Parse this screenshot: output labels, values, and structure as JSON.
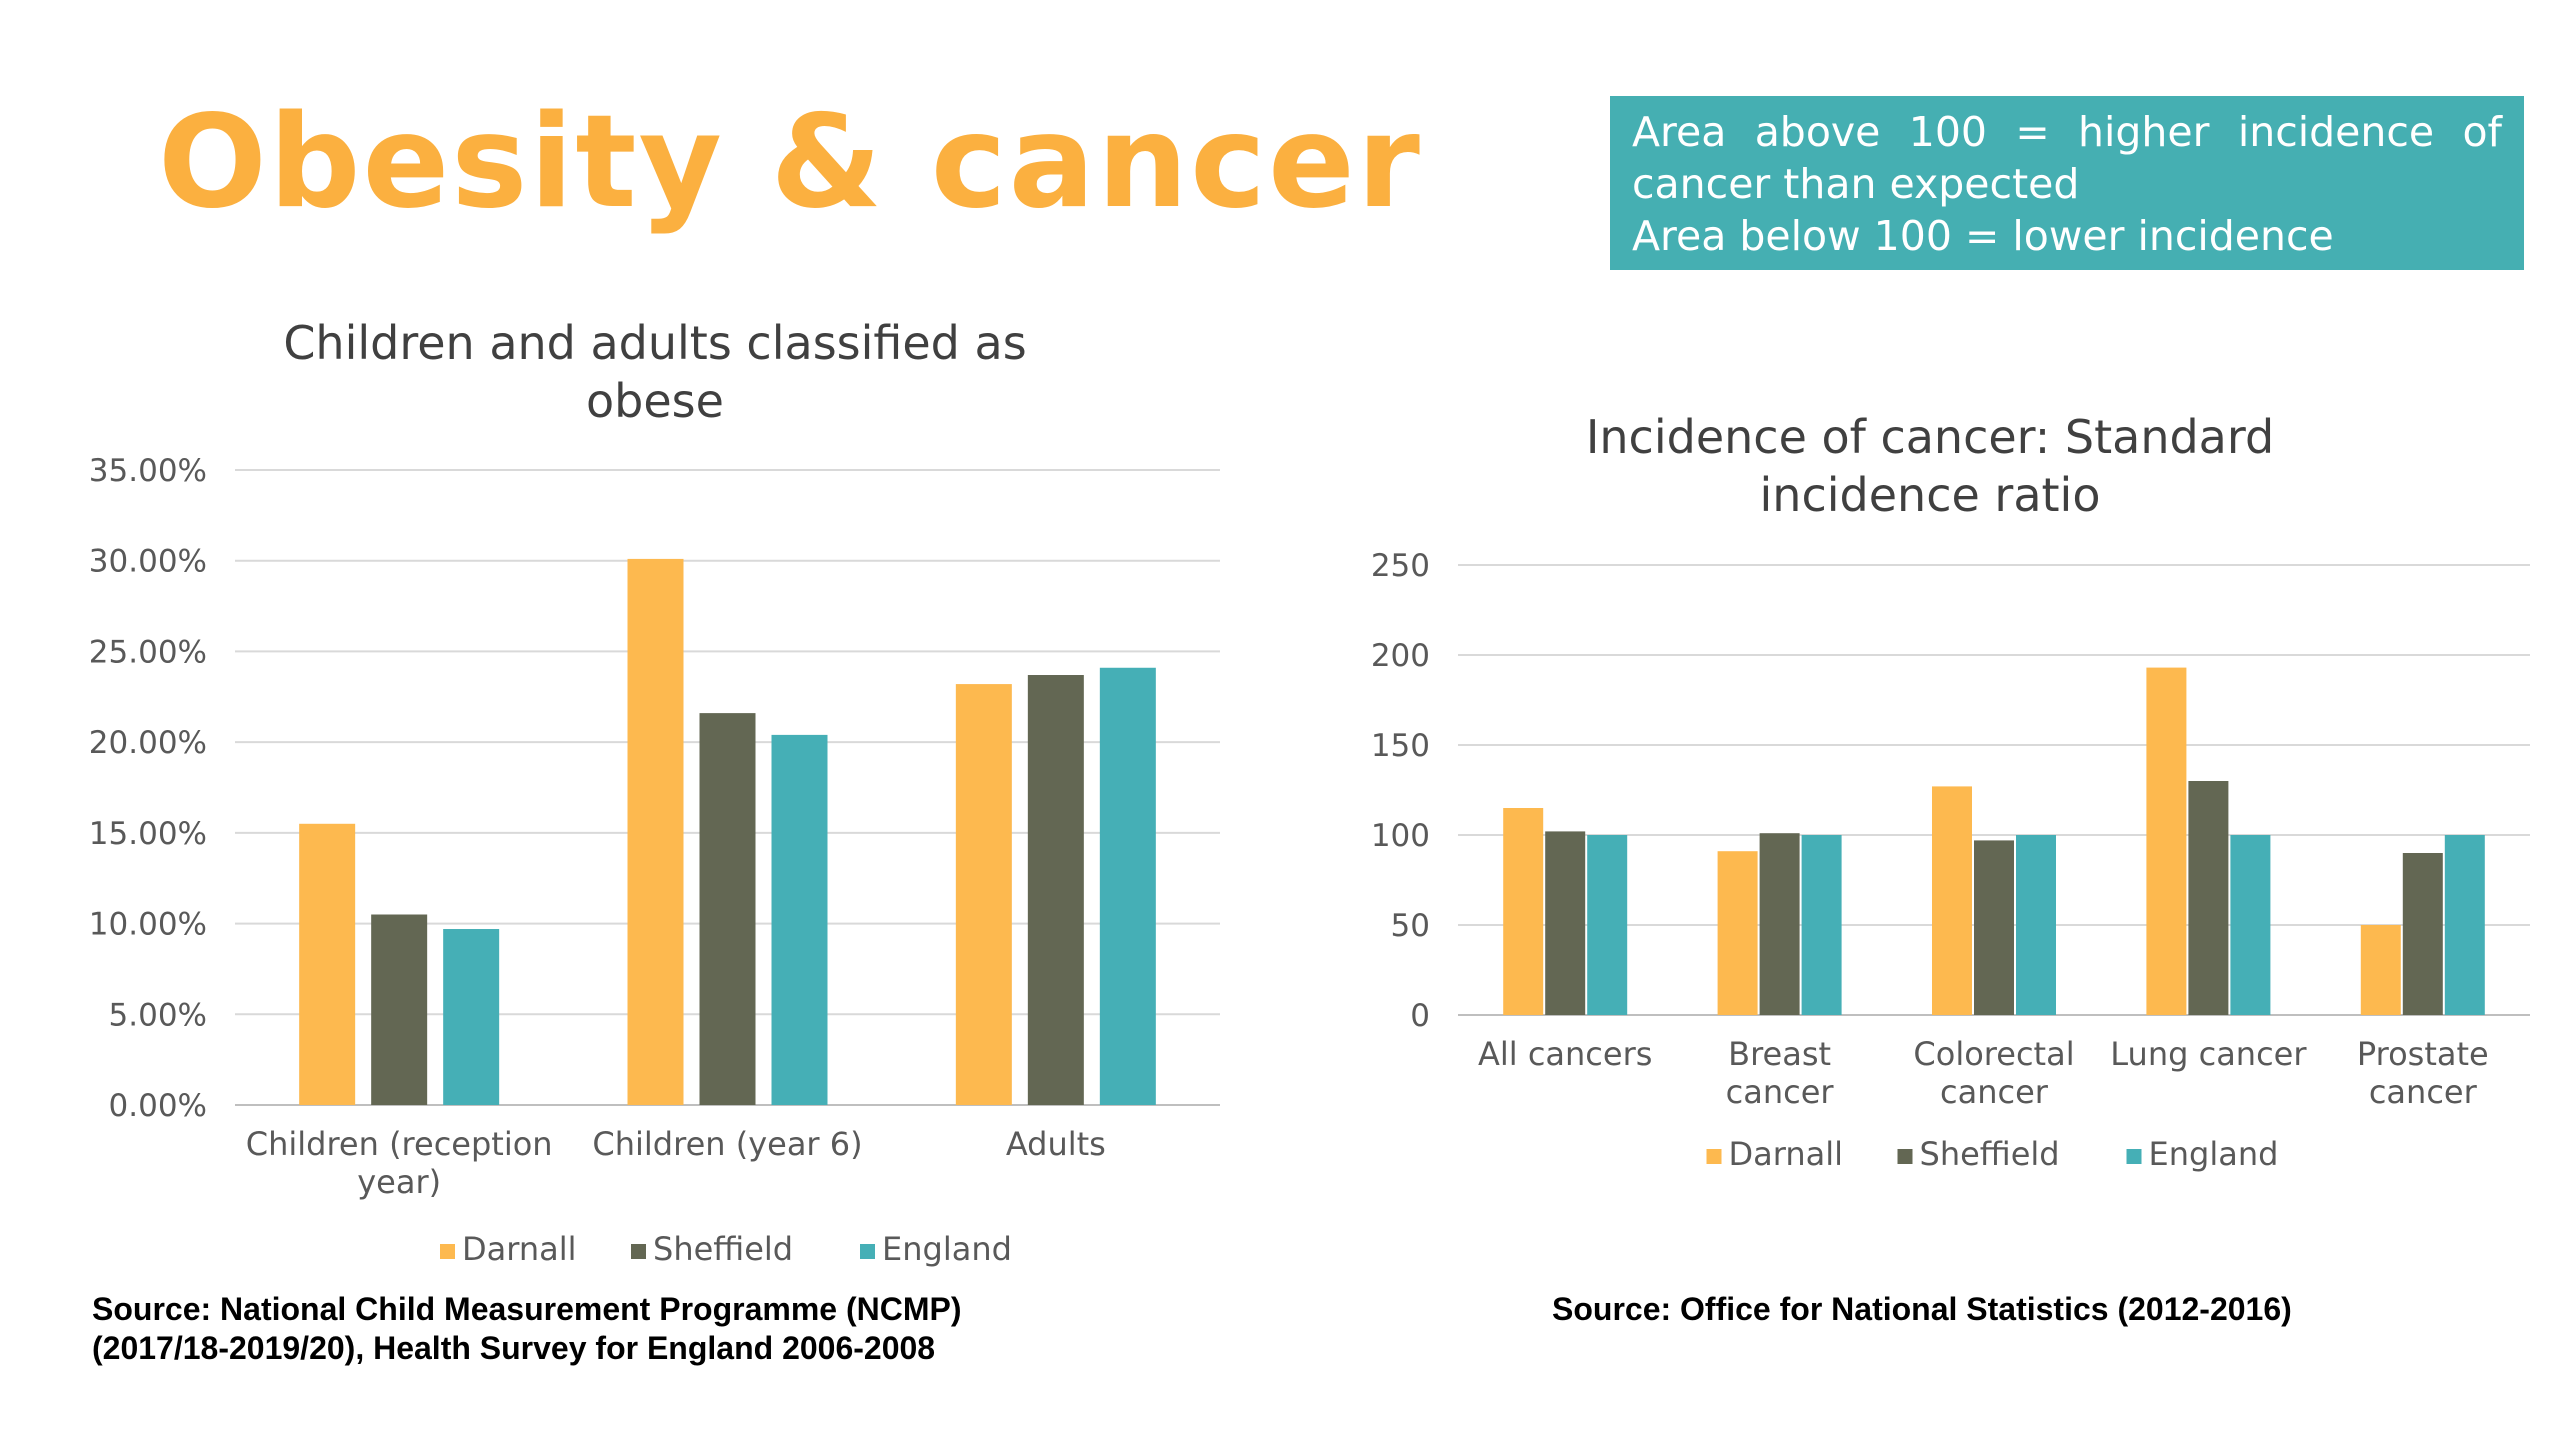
{
  "slide": {
    "title": "Obesity & cancer",
    "note": {
      "line1_words": [
        "Area",
        "above",
        "100",
        "=",
        "higher",
        "incidence",
        "of"
      ],
      "line2": "cancer than expected",
      "line3": "Area below 100 = lower incidence"
    },
    "source_left_line1": "Source:  National Child Measurement Programme (NCMP)",
    "source_left_line2": "(2017/18-2019/20), Health Survey for England 2006-2008",
    "source_right": "Source:  Office for National Statistics (2012-2016)"
  },
  "colors": {
    "Darnall": "#FDB94F",
    "Sheffield": "#636753",
    "England": "#45AFB6",
    "grid": "#D9D9D9"
  },
  "chart_data": [
    {
      "type": "bar",
      "title_line1": "Children and adults classified as",
      "title_line2": "obese",
      "categories": [
        [
          "Children (reception",
          "year)"
        ],
        [
          "Children (year 6)"
        ],
        [
          "Adults"
        ]
      ],
      "series": [
        {
          "name": "Darnall",
          "values": [
            15.5,
            30.1,
            23.2
          ]
        },
        {
          "name": "Sheffield",
          "values": [
            10.5,
            21.6,
            23.7
          ]
        },
        {
          "name": "England",
          "values": [
            9.7,
            20.4,
            24.1
          ]
        }
      ],
      "yticks": [
        "0.00%",
        "5.00%",
        "10.00%",
        "15.00%",
        "20.00%",
        "25.00%",
        "30.00%",
        "35.00%"
      ],
      "ylim": [
        0,
        35
      ],
      "legend": "bottom",
      "grid": true
    },
    {
      "type": "bar",
      "title_line1": "Incidence of cancer: Standard",
      "title_line2": "incidence ratio",
      "categories": [
        [
          "All cancers"
        ],
        [
          "Breast",
          "cancer"
        ],
        [
          "Colorectal",
          "cancer"
        ],
        [
          "Lung cancer"
        ],
        [
          "Prostate",
          "cancer"
        ]
      ],
      "series": [
        {
          "name": "Darnall",
          "values": [
            115,
            91,
            127,
            193,
            50
          ]
        },
        {
          "name": "Sheffield",
          "values": [
            102,
            101,
            97,
            130,
            90
          ]
        },
        {
          "name": "England",
          "values": [
            100,
            100,
            100,
            100,
            100
          ]
        }
      ],
      "yticks": [
        "0",
        "50",
        "100",
        "150",
        "200",
        "250"
      ],
      "ylim": [
        0,
        250
      ],
      "legend": "bottom",
      "grid": true
    }
  ]
}
